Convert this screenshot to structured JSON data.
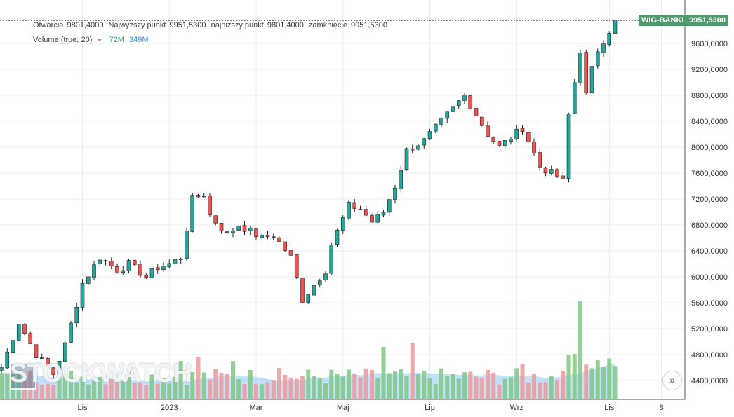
{
  "legend": {
    "open_label": "Otwarcie",
    "open_value": "9801,4000",
    "high_label": "Najwyzszy punkt",
    "high_value": "9951,5300",
    "low_label": "najnizszy punkt",
    "low_value": "9801,4000",
    "close_label": "zamknięcie",
    "close_value": "9951,5300",
    "volume_label": "Volume (true, 20)",
    "volume_value": "72M",
    "volume_ma_value": "349M"
  },
  "price_tag": {
    "symbol": "WIG-BANKI",
    "value": "9951,5300"
  },
  "watermark": "STOCKWATCH",
  "scroll_icon": "double-chevron-right-icon",
  "colors": {
    "up": "#26a69a",
    "down": "#ef5350",
    "tag": "#4e9a6c",
    "vol_ma": "#90caf9"
  },
  "chart_data": {
    "type": "candlestick",
    "title": "WIG-BANKI",
    "y_ticks": [
      "9600,0000",
      "9200,0000",
      "8800,0000",
      "8400,0000",
      "8000,0000",
      "7600,0000",
      "7200,0000",
      "6800,0000",
      "6400,0000",
      "6000,0000",
      "5600,0000",
      "5200,0000",
      "4800,0000",
      "4400,0000"
    ],
    "ylim": [
      4150,
      10050
    ],
    "x_ticks": [
      "Lis",
      "2023",
      "Mar",
      "Maj",
      "Lip",
      "Wrz",
      "Lis",
      "8"
    ],
    "series": [
      {
        "name": "price_path",
        "x": [
          0,
          3,
          6,
          9,
          11,
          14,
          17,
          20,
          22,
          25,
          27,
          29,
          31,
          33,
          35,
          36,
          39,
          41,
          45,
          47,
          50,
          52,
          56,
          57,
          60,
          62,
          64,
          66,
          68,
          70,
          73,
          77,
          80,
          82,
          84,
          86,
          90,
          93,
          96,
          98,
          100,
          102,
          104,
          105
        ],
        "y": [
          4600,
          5300,
          4800,
          4500,
          4950,
          5900,
          6300,
          6100,
          6200,
          6000,
          6150,
          6200,
          6300,
          7200,
          7280,
          6950,
          6650,
          6800,
          6600,
          6650,
          6300,
          5650,
          6100,
          6500,
          7100,
          7050,
          6850,
          7000,
          7400,
          7950,
          8100,
          8500,
          8800,
          8500,
          8200,
          8000,
          8300,
          7700,
          7550,
          7400,
          8000,
          8550,
          8400,
          8800
        ]
      },
      {
        "name": "late_rally",
        "x": [
          98,
          100,
          101,
          102,
          103,
          104,
          105,
          106
        ],
        "y": [
          8500,
          9500,
          8800,
          9200,
          9500,
          9650,
          9800,
          9951.53
        ]
      }
    ],
    "last_value": 9951.53
  }
}
